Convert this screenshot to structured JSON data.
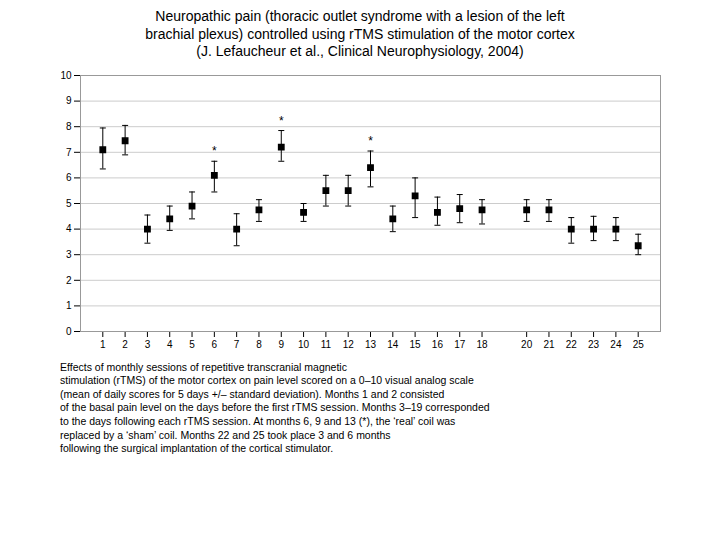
{
  "chart_data": {
    "type": "scatter",
    "title": "Neuropathic pain (thoracic outlet syndrome with a lesion of the left\nbrachial plexus) controlled using rTMS stimulation of the motor cortex\n(J. Lefaucheur et al., Clinical Neurophysiology, 2004)",
    "caption": "Effects of monthly sessions of repetitive transcranial magnetic\nstimulation (rTMS) of the motor cortex on pain level scored on a 0–10 visual analog scale\n(mean of daily scores for 5 days +/– standard deviation). Months 1 and 2 consisted\nof the basal pain level on the days before the first rTMS session. Months 3–19 corresponded\nto the days following each rTMS session. At months 6, 9 and 13 (*), the ‘real’ coil was\nreplaced by a ‘sham’ coil. Months 22 and 25 took place 3 and 6 months\nfollowing the surgical implantation of the cortical stimulator.",
    "x": [
      1,
      2,
      3,
      4,
      5,
      6,
      7,
      8,
      9,
      10,
      11,
      12,
      13,
      14,
      15,
      16,
      17,
      18,
      20,
      21,
      22,
      23,
      24,
      25
    ],
    "values": [
      7.1,
      7.45,
      4.0,
      4.4,
      4.9,
      6.1,
      4.0,
      4.75,
      7.2,
      4.65,
      5.5,
      5.5,
      6.4,
      4.4,
      5.3,
      4.65,
      4.8,
      4.75,
      4.75,
      4.75,
      4.0,
      4.0,
      4.0,
      3.35
    ],
    "yerr_low": [
      0.75,
      0.55,
      0.55,
      0.45,
      0.5,
      0.65,
      0.65,
      0.45,
      0.55,
      0.35,
      0.6,
      0.6,
      0.75,
      0.5,
      0.85,
      0.5,
      0.55,
      0.55,
      0.45,
      0.45,
      0.55,
      0.45,
      0.45,
      0.35
    ],
    "yerr_high": [
      0.85,
      0.6,
      0.55,
      0.5,
      0.55,
      0.55,
      0.6,
      0.4,
      0.65,
      0.35,
      0.6,
      0.6,
      0.65,
      0.5,
      0.7,
      0.6,
      0.55,
      0.4,
      0.4,
      0.4,
      0.45,
      0.5,
      0.45,
      0.45
    ],
    "annotations": [
      {
        "x": 6,
        "text": "*"
      },
      {
        "x": 9,
        "text": "*"
      },
      {
        "x": 13,
        "text": "*"
      }
    ],
    "marker": "square",
    "color": "black",
    "xlim": [
      0,
      26
    ],
    "xticks": [
      1,
      2,
      3,
      4,
      5,
      6,
      7,
      8,
      9,
      10,
      11,
      12,
      13,
      14,
      15,
      16,
      17,
      18,
      20,
      21,
      22,
      23,
      24,
      25
    ],
    "ylim": [
      0,
      10
    ],
    "yticks": [
      0,
      1,
      2,
      3,
      4,
      5,
      6,
      7,
      8,
      9,
      10
    ],
    "grid": "y"
  }
}
